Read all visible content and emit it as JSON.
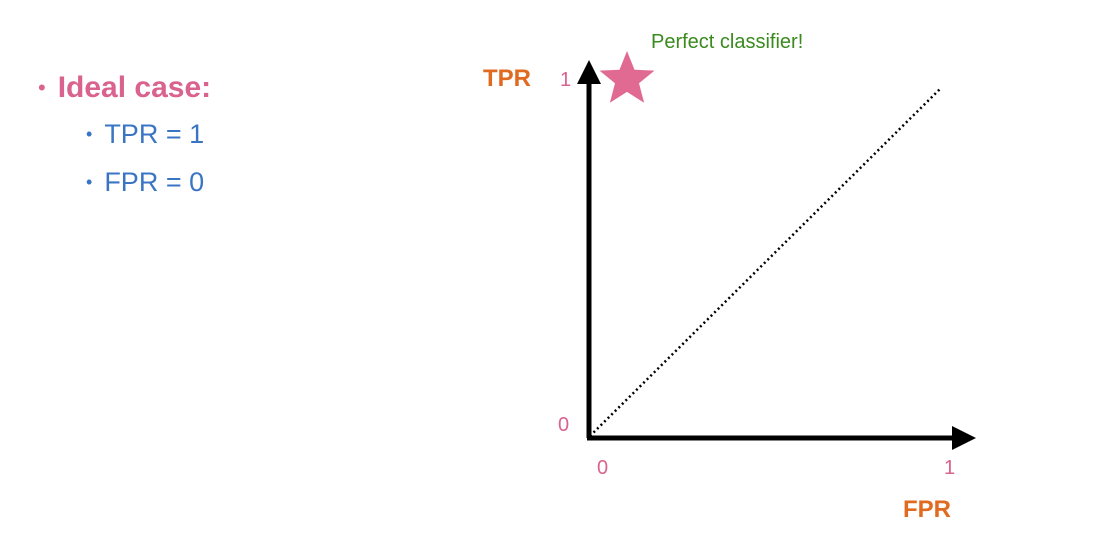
{
  "bullets": {
    "main": {
      "dot": "•",
      "label": "Ideal case:"
    },
    "items": [
      {
        "dot": "•",
        "label": "TPR = 1"
      },
      {
        "dot": "•",
        "label": "FPR = 0"
      }
    ]
  },
  "diagram": {
    "y_axis_title": "TPR",
    "x_axis_title": "FPR",
    "y_tick_top": "1",
    "y_tick_bottom": "0",
    "x_tick_left": "0",
    "x_tick_right": "1",
    "annotation": "Perfect classifier!",
    "star_icon": "star-icon",
    "colors": {
      "axis_title": "#e06a1f",
      "tick": "#d9628f",
      "annotation": "#3a8a1e",
      "star": "#e06a91",
      "axis": "#000000",
      "bullet_main": "#d9628f",
      "bullet_sub": "#3a75c4"
    }
  }
}
